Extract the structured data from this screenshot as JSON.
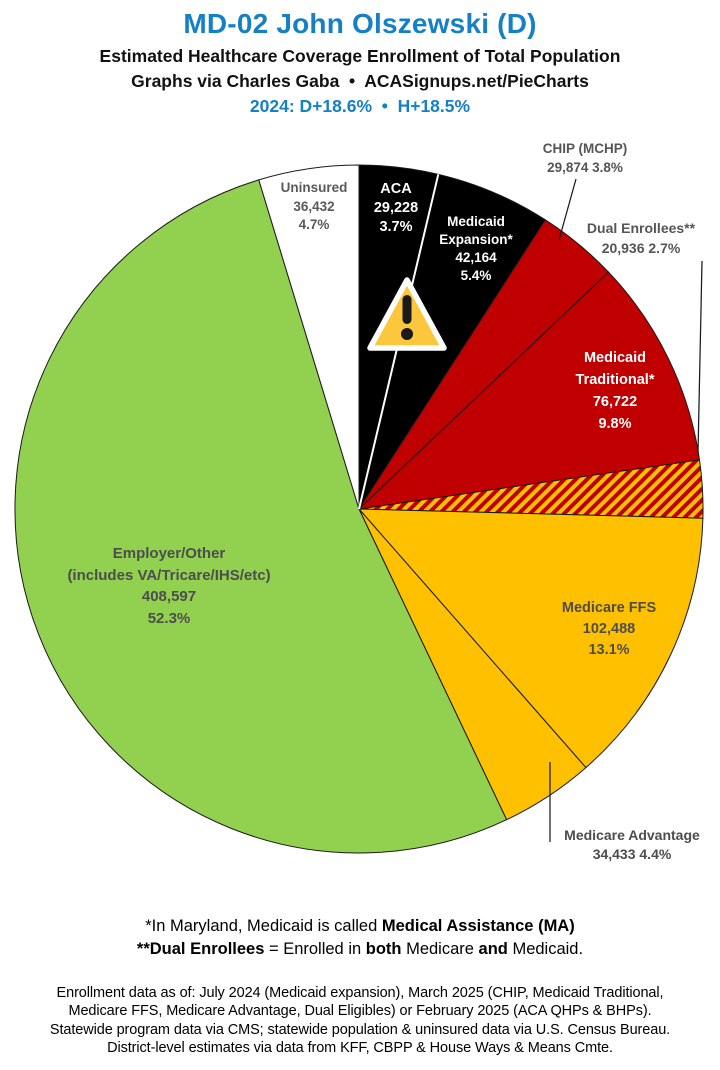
{
  "header": {
    "title": "MD-02 John Olszewski (D)",
    "subtitle1": "Estimated Healthcare Coverage Enrollment of Total Population",
    "subtitle2": "Graphs via Charles Gaba  •  ACASignups.net/PieCharts",
    "subtitle3": "2024: D+18.6%  •  H+18.5%",
    "title_color": "#1580C6"
  },
  "chart_data": {
    "type": "pie",
    "title": "Estimated Healthcare Coverage Enrollment of Total Population",
    "start_angle": "12 o'clock, clockwise",
    "legend_position": "none (direct labels on/next to slices)",
    "white_divider_after": "ACA",
    "slices": [
      {
        "name": "ACA",
        "value": 29228,
        "pct": 3.7,
        "color": "#000000",
        "text_color": "#FFFFFF",
        "label_lines": [
          "ACA",
          "29,228",
          "3.7%"
        ]
      },
      {
        "name": "Medicaid Expansion",
        "value": 42164,
        "pct": 5.4,
        "color": "#000000",
        "text_color": "#FFFFFF",
        "label_lines": [
          "Medicaid",
          "Expansion*",
          "42,164",
          "5.4%"
        ]
      },
      {
        "name": "CHIP (MCHP)",
        "value": 29874,
        "pct": 3.8,
        "color": "#C00000",
        "text_color": "#555555",
        "label_outside": true,
        "label_lines": [
          "CHIP (MCHP)",
          "29,874 3.8%"
        ]
      },
      {
        "name": "Medicaid Traditional",
        "value": 76722,
        "pct": 9.8,
        "color": "#C00000",
        "text_color": "#FFFFFF",
        "label_lines": [
          "Medicaid",
          "Traditional*",
          "76,722",
          "9.8%"
        ]
      },
      {
        "name": "Dual Enrollees",
        "value": 20936,
        "pct": 2.7,
        "color": "#FFC000",
        "hatch": true,
        "stripe_color": "#C00000",
        "text_color": "#555555",
        "label_outside": true,
        "label_lines": [
          "Dual Enrollees**",
          "20,936 2.7%"
        ]
      },
      {
        "name": "Medicare FFS",
        "value": 102488,
        "pct": 13.1,
        "color": "#FFC000",
        "text_color": "#4D4D4D",
        "label_lines": [
          "Medicare FFS",
          "102,488",
          "13.1%"
        ]
      },
      {
        "name": "Medicare Advantage",
        "value": 34433,
        "pct": 4.4,
        "color": "#FFC000",
        "text_color": "#4D4D4D",
        "label_outside": true,
        "label_lines": [
          "Medicare Advantage",
          "34,433 4.4%"
        ]
      },
      {
        "name": "Employer/Other",
        "value": 408597,
        "pct": 52.3,
        "color": "#92D050",
        "text_color": "#4D4D4D",
        "label_lines": [
          "Employer/Other",
          "(includes VA/Tricare/IHS/etc)",
          "408,597",
          "52.3%"
        ]
      },
      {
        "name": "Uninsured",
        "value": 36432,
        "pct": 4.7,
        "color": "#FFFFFF",
        "text_color": "#595959",
        "label_lines": [
          "Uninsured",
          "36,432",
          "4.7%"
        ]
      }
    ]
  },
  "footnotes": {
    "line1": [
      {
        "t": "*In Maryland, Medicaid is called ",
        "b": 0
      },
      {
        "t": "Medical Assistance (MA)",
        "b": 1
      }
    ],
    "line2": [
      {
        "t": "**Dual Enrollees",
        "b": 1
      },
      {
        "t": " = Enrolled in ",
        "b": 0
      },
      {
        "t": "both",
        "b": 1
      },
      {
        "t": " Medicare ",
        "b": 0
      },
      {
        "t": "and",
        "b": 1
      },
      {
        "t": " Medicaid.",
        "b": 0
      }
    ],
    "data_lines": [
      "Enrollment data as of: July 2024 (Medicaid expansion), March 2025 (CHIP, Medicaid Traditional,",
      "Medicare FFS, Medicare Advantage, Dual Eligibles) or February 2025 (ACA QHPs & BHPs).",
      "Statewide program data via CMS; statewide population & uninsured data via U.S. Census Bureau.",
      "District-level estimates via data from KFF, CBPP & House Ways & Means Cmte."
    ]
  }
}
